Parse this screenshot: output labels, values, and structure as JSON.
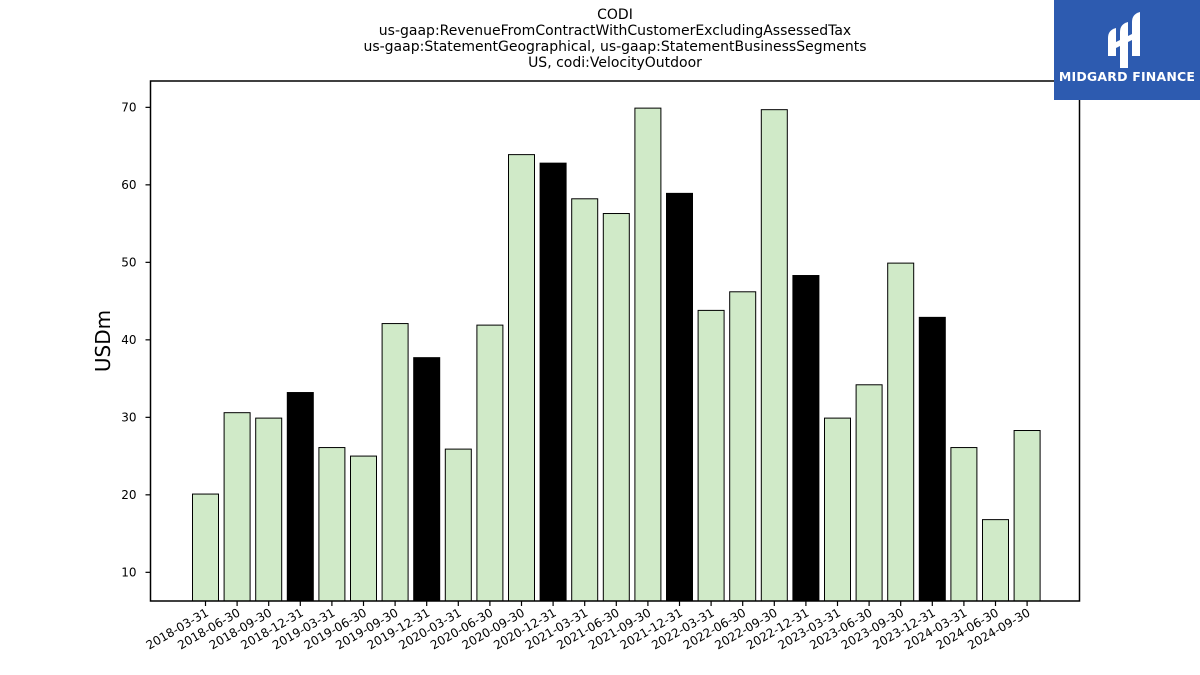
{
  "title_lines": [
    "CODI",
    "us-gaap:RevenueFromContractWithCustomerExcludingAssessedTax",
    "us-gaap:StatementGeographical, us-gaap:StatementBusinessSegments",
    "US, codi:VelocityOutdoor"
  ],
  "logo": {
    "text": "MIDGARD FINANCE",
    "background": "#2d5bb0"
  },
  "colors": {
    "quarter_bar": "#d0eac8",
    "year_end_bar": "#000000",
    "edge": "#000000"
  },
  "chart_data": {
    "type": "bar",
    "title": "CODI us-gaap:RevenueFromContractWithCustomerExcludingAssessedTax us-gaap:StatementGeographical, us-gaap:StatementBusinessSegments US, codi:VelocityOutdoor",
    "xlabel": "",
    "ylabel": "USDm",
    "ylim": [
      6.3,
      73.4
    ],
    "yticks": [
      10,
      20,
      30,
      40,
      50,
      60,
      70
    ],
    "categories": [
      "2018-03-31",
      "2018-06-30",
      "2018-09-30",
      "2018-12-31",
      "2019-03-31",
      "2019-06-30",
      "2019-09-30",
      "2019-12-31",
      "2020-03-31",
      "2020-06-30",
      "2020-09-30",
      "2020-12-31",
      "2021-03-31",
      "2021-06-30",
      "2021-09-30",
      "2021-12-31",
      "2022-03-31",
      "2022-06-30",
      "2022-09-30",
      "2022-12-31",
      "2023-03-31",
      "2023-06-30",
      "2023-09-30",
      "2023-12-31",
      "2024-03-31",
      "2024-06-30",
      "2024-09-30"
    ],
    "values": [
      20.1,
      30.6,
      29.9,
      33.2,
      26.1,
      25.0,
      42.1,
      37.7,
      25.9,
      41.9,
      63.9,
      62.8,
      58.2,
      56.3,
      69.9,
      58.9,
      43.8,
      46.2,
      69.7,
      48.3,
      29.9,
      34.2,
      49.9,
      42.9,
      26.1,
      16.8,
      28.3
    ],
    "year_end": [
      false,
      false,
      false,
      true,
      false,
      false,
      false,
      true,
      false,
      false,
      false,
      true,
      false,
      false,
      false,
      true,
      false,
      false,
      false,
      true,
      false,
      false,
      false,
      true,
      false,
      false,
      false
    ],
    "grid": false,
    "legend": "none"
  }
}
